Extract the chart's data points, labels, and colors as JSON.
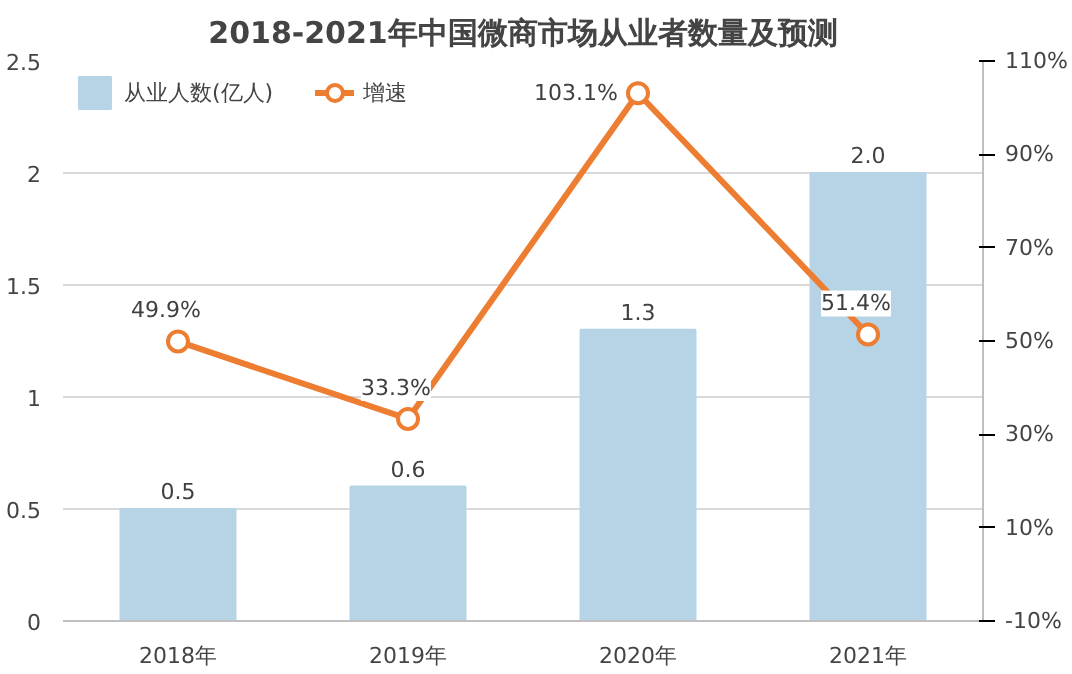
{
  "chart_data": {
    "type": "bar",
    "title": "2018-2021年中国微商市场从业者数量及预测",
    "categories": [
      "2018年",
      "2019年",
      "2020年",
      "2021年"
    ],
    "series": [
      {
        "name": "从业人数(亿人)",
        "color": "#b7d3e6",
        "values": [
          0.5,
          0.6,
          1.3,
          2.0
        ],
        "value_labels": [
          "0.5",
          "0.6",
          "1.3",
          "2.0"
        ]
      },
      {
        "name": "增速",
        "type": "line",
        "axis": "y2",
        "color": "#ed7d31",
        "marker": "circle",
        "values": [
          49.9,
          33.3,
          103.1,
          51.4
        ],
        "value_labels": [
          "49.9%",
          "33.3%",
          "103.1%",
          "51.4%"
        ]
      }
    ],
    "ylim": [
      0,
      2.5
    ],
    "yticks": [
      0,
      0.5,
      1.0,
      1.5,
      2.0,
      2.5
    ],
    "y2lim": [
      -10,
      110
    ],
    "y2ticks": [
      {
        "value": -10,
        "label": "-10%"
      },
      {
        "value": 10,
        "label": "10%"
      },
      {
        "value": 30,
        "label": "30%"
      },
      {
        "value": 50,
        "label": "50%"
      },
      {
        "value": 70,
        "label": "70%"
      },
      {
        "value": 90,
        "label": "90%"
      },
      {
        "value": 110,
        "label": "110%"
      }
    ],
    "grid": "y",
    "legend": "top left"
  }
}
